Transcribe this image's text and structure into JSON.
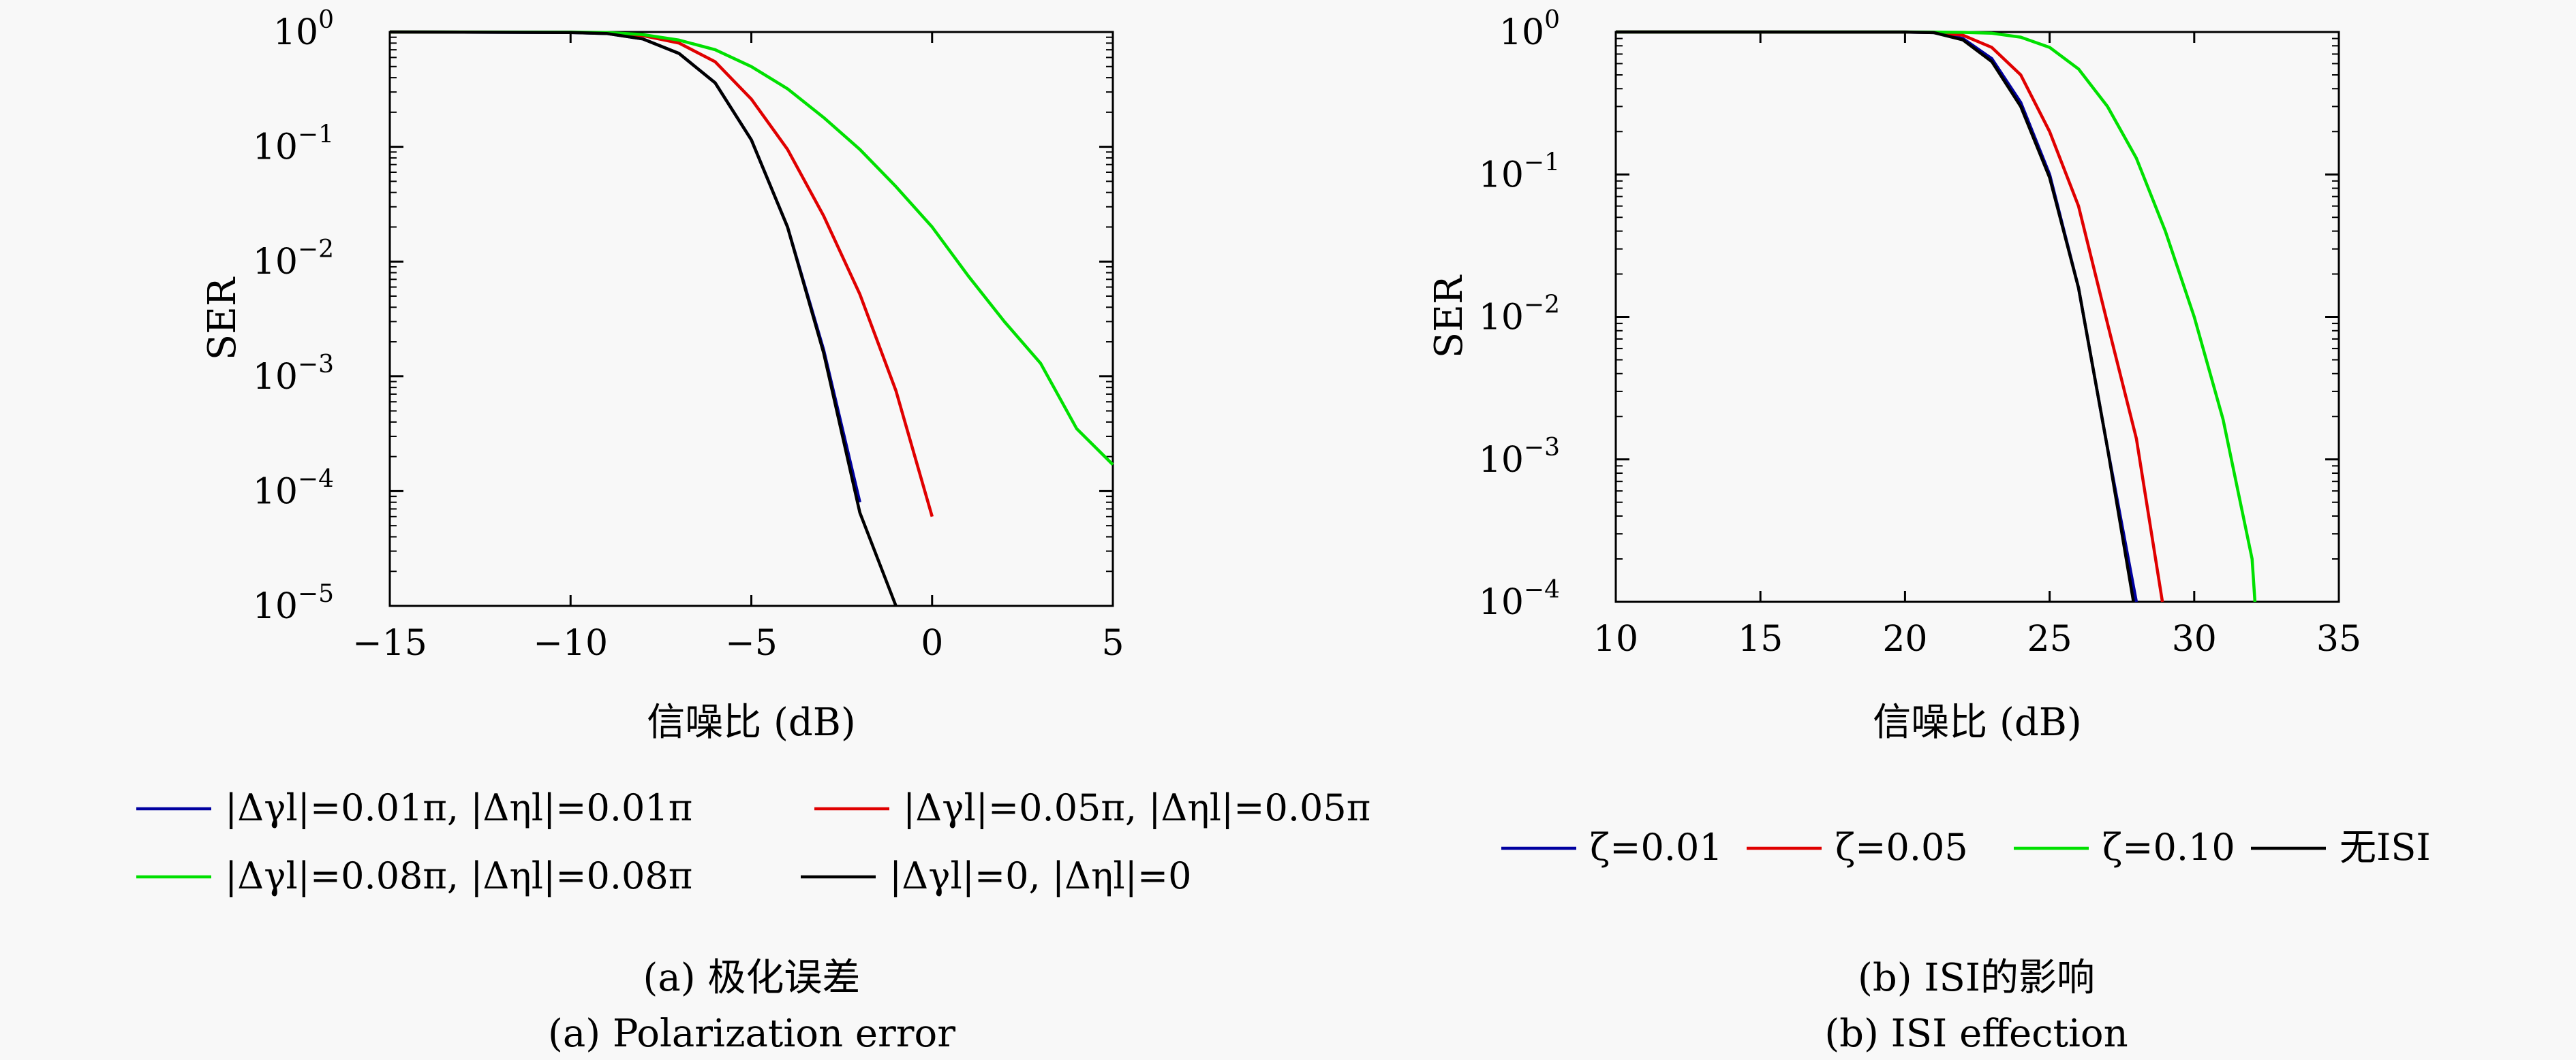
{
  "chart_data": [
    {
      "type": "line",
      "panel": "a",
      "xlabel": "信噪比 (dB)",
      "ylabel": "SER",
      "xlim": [
        -15,
        5
      ],
      "ylim": [
        1e-05,
        1
      ],
      "yscale": "log",
      "xticks": [
        -15,
        -10,
        -5,
        0,
        5
      ],
      "xtick_labels": [
        "−15",
        "−10",
        "−5",
        "0",
        "5"
      ],
      "yticks": [
        1,
        0.1,
        0.01,
        0.001,
        0.0001,
        1e-05
      ],
      "ytick_labels": [
        {
          "base": "10",
          "exp": "0"
        },
        {
          "base": "10",
          "exp": "−1"
        },
        {
          "base": "10",
          "exp": "−2"
        },
        {
          "base": "10",
          "exp": "−3"
        },
        {
          "base": "10",
          "exp": "−4"
        },
        {
          "base": "10",
          "exp": "−5"
        }
      ],
      "grid": false,
      "legend_position": "below",
      "series": [
        {
          "name": "|Δγl|=0.01π, |Δηl|=0.01π",
          "color": "#0000a0",
          "x": [
            -15,
            -10,
            -9,
            -8,
            -7,
            -6,
            -5,
            -4,
            -3,
            -2
          ],
          "y": [
            1,
            0.99,
            0.97,
            0.87,
            0.65,
            0.36,
            0.115,
            0.02,
            0.0017,
            8e-05
          ]
        },
        {
          "name": "|Δγl|=0.05π, |Δηl|=0.05π",
          "color": "#e00000",
          "x": [
            -15,
            -10,
            -9,
            -8,
            -7,
            -6,
            -5,
            -4,
            -3,
            -2,
            -1,
            0
          ],
          "y": [
            1,
            0.995,
            0.98,
            0.93,
            0.8,
            0.55,
            0.26,
            0.095,
            0.025,
            0.0052,
            0.00075,
            6e-05
          ]
        },
        {
          "name": "|Δγl|=0.08π, |Δηl|=0.08π",
          "color": "#00e000",
          "x": [
            -15,
            -10,
            -9,
            -8,
            -7,
            -6,
            -5,
            -4,
            -3,
            -2,
            -1,
            0,
            1,
            2,
            3,
            4,
            5
          ],
          "y": [
            1,
            0.998,
            0.99,
            0.95,
            0.85,
            0.7,
            0.5,
            0.32,
            0.18,
            0.095,
            0.045,
            0.02,
            0.0075,
            0.003,
            0.0013,
            0.00035,
            0.00017
          ]
        },
        {
          "name": "|Δγl|=0, |Δηl|=0",
          "color": "#000000",
          "x": [
            -15,
            -10,
            -9,
            -8,
            -7,
            -6,
            -5,
            -4,
            -3,
            -2,
            -1
          ],
          "y": [
            1,
            0.99,
            0.97,
            0.87,
            0.65,
            0.36,
            0.115,
            0.02,
            0.0016,
            6.5e-05,
            1e-05
          ]
        }
      ],
      "caption_cn": "(a) 极化误差",
      "caption_en": "(a) Polarization error"
    },
    {
      "type": "line",
      "panel": "b",
      "xlabel": "信噪比 (dB)",
      "ylabel": "SER",
      "xlim": [
        10,
        35
      ],
      "ylim": [
        0.0001,
        1
      ],
      "yscale": "log",
      "xticks": [
        10,
        15,
        20,
        25,
        30,
        35
      ],
      "xtick_labels": [
        "10",
        "15",
        "20",
        "25",
        "30",
        "35"
      ],
      "yticks": [
        1,
        0.1,
        0.01,
        0.001,
        0.0001
      ],
      "ytick_labels": [
        {
          "base": "10",
          "exp": "0"
        },
        {
          "base": "10",
          "exp": "−1"
        },
        {
          "base": "10",
          "exp": "−2"
        },
        {
          "base": "10",
          "exp": "−3"
        },
        {
          "base": "10",
          "exp": "−4"
        }
      ],
      "grid": false,
      "legend_position": "below",
      "series": [
        {
          "name": "ζ=0.01",
          "color": "#0000a0",
          "x": [
            10,
            20,
            21,
            22,
            23,
            24,
            25,
            26,
            27,
            28
          ],
          "y": [
            1,
            0.999,
            0.99,
            0.9,
            0.65,
            0.32,
            0.1,
            0.016,
            0.0012,
            0.0001
          ]
        },
        {
          "name": "ζ=0.05",
          "color": "#e00000",
          "x": [
            10,
            20,
            21,
            22,
            23,
            24,
            25,
            26,
            27,
            28,
            28.9
          ],
          "y": [
            1,
            0.999,
            0.995,
            0.95,
            0.78,
            0.5,
            0.2,
            0.06,
            0.009,
            0.0014,
            0.0001
          ]
        },
        {
          "name": "ζ=0.10",
          "color": "#00e000",
          "x": [
            10,
            20,
            21,
            22,
            23,
            24,
            25,
            26,
            27,
            28,
            29,
            30,
            31,
            32,
            32.1
          ],
          "y": [
            1,
            1,
            0.999,
            0.995,
            0.98,
            0.92,
            0.78,
            0.55,
            0.3,
            0.13,
            0.04,
            0.01,
            0.0019,
            0.0002,
            0.0001
          ]
        },
        {
          "name": "无ISI",
          "color": "#000000",
          "x": [
            10,
            20,
            21,
            22,
            23,
            24,
            25,
            26,
            27,
            27.9
          ],
          "y": [
            1,
            0.999,
            0.99,
            0.88,
            0.62,
            0.3,
            0.095,
            0.016,
            0.0012,
            0.0001
          ]
        }
      ],
      "caption_cn": "(b) ISI的影响",
      "caption_en": "(b) ISI effection"
    }
  ]
}
